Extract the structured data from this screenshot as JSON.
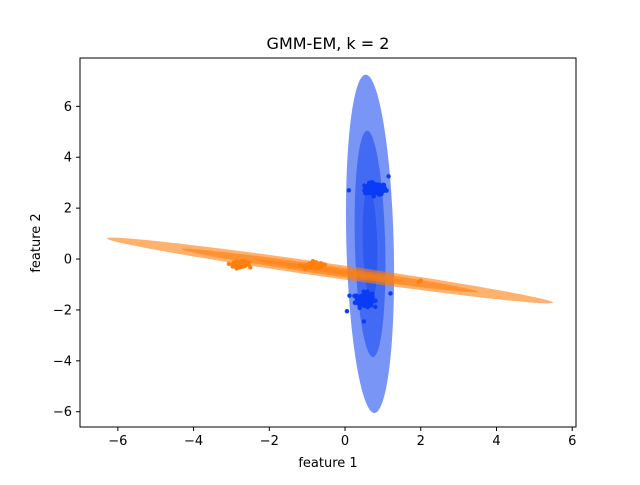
{
  "chart_data": {
    "type": "scatter",
    "title": "GMM-EM, k = 2",
    "xlabel": "feature 1",
    "ylabel": "feature 2",
    "xlim": [
      -7.0,
      6.1
    ],
    "ylim": [
      -6.6,
      7.9
    ],
    "xticks": [
      -6,
      -4,
      -2,
      0,
      2,
      4,
      6
    ],
    "yticks": [
      -6,
      -4,
      -2,
      0,
      2,
      4,
      6
    ],
    "xtick_labels": [
      "−6",
      "−4",
      "−2",
      "0",
      "2",
      "4",
      "6"
    ],
    "ytick_labels": [
      "−6",
      "−4",
      "−2",
      "0",
      "2",
      "4",
      "6"
    ],
    "grid": false,
    "clusters": [
      {
        "color": "#0a3cf5",
        "ellipse_color": "#1f4ff0",
        "mean": [
          0.65,
          0.65
        ],
        "ellipses": [
          {
            "center": [
              0.66,
              0.6
            ],
            "width": 1.25,
            "height": 13.3,
            "angle_deg": 1.5,
            "alpha": 0.6
          },
          {
            "center": [
              0.66,
              0.6
            ],
            "width": 0.8,
            "height": 8.9,
            "angle_deg": 1.5,
            "alpha": 0.6
          },
          {
            "center": [
              0.66,
              0.6
            ],
            "width": 0.38,
            "height": 4.4,
            "angle_deg": 1.5,
            "alpha": 0.6
          }
        ],
        "blobs": [
          {
            "center": [
              0.8,
              2.75
            ],
            "spread": [
              0.28,
              0.22
            ],
            "n": 120
          },
          {
            "center": [
              0.5,
              -1.6
            ],
            "spread": [
              0.22,
              0.28
            ],
            "n": 120
          }
        ],
        "outliers": [
          [
            1.15,
            3.25
          ],
          [
            0.1,
            2.7
          ],
          [
            0.5,
            -2.45
          ],
          [
            1.2,
            -1.35
          ],
          [
            0.05,
            -2.05
          ]
        ]
      },
      {
        "color": "#ff7f0e",
        "ellipse_color": "#ff7f0e",
        "mean": [
          -0.4,
          -0.45
        ],
        "ellipses": [
          {
            "center": [
              -0.4,
              -0.45
            ],
            "width": 11.9,
            "height": 0.55,
            "angle_deg": -8.2,
            "alpha": 0.6
          },
          {
            "center": [
              -0.4,
              -0.45
            ],
            "width": 7.9,
            "height": 0.36,
            "angle_deg": -8.2,
            "alpha": 0.6
          },
          {
            "center": [
              -0.4,
              -0.45
            ],
            "width": 3.95,
            "height": 0.18,
            "angle_deg": -8.2,
            "alpha": 0.6
          }
        ],
        "blobs": [
          {
            "center": [
              -2.75,
              -0.2
            ],
            "spread": [
              0.22,
              0.1
            ],
            "n": 110
          },
          {
            "center": [
              -0.8,
              -0.25
            ],
            "spread": [
              0.22,
              0.1
            ],
            "n": 110
          }
        ],
        "outliers": [
          [
            2.0,
            -0.85
          ],
          [
            1.95,
            -0.9
          ],
          [
            -1.2,
            -0.25
          ]
        ]
      }
    ]
  }
}
